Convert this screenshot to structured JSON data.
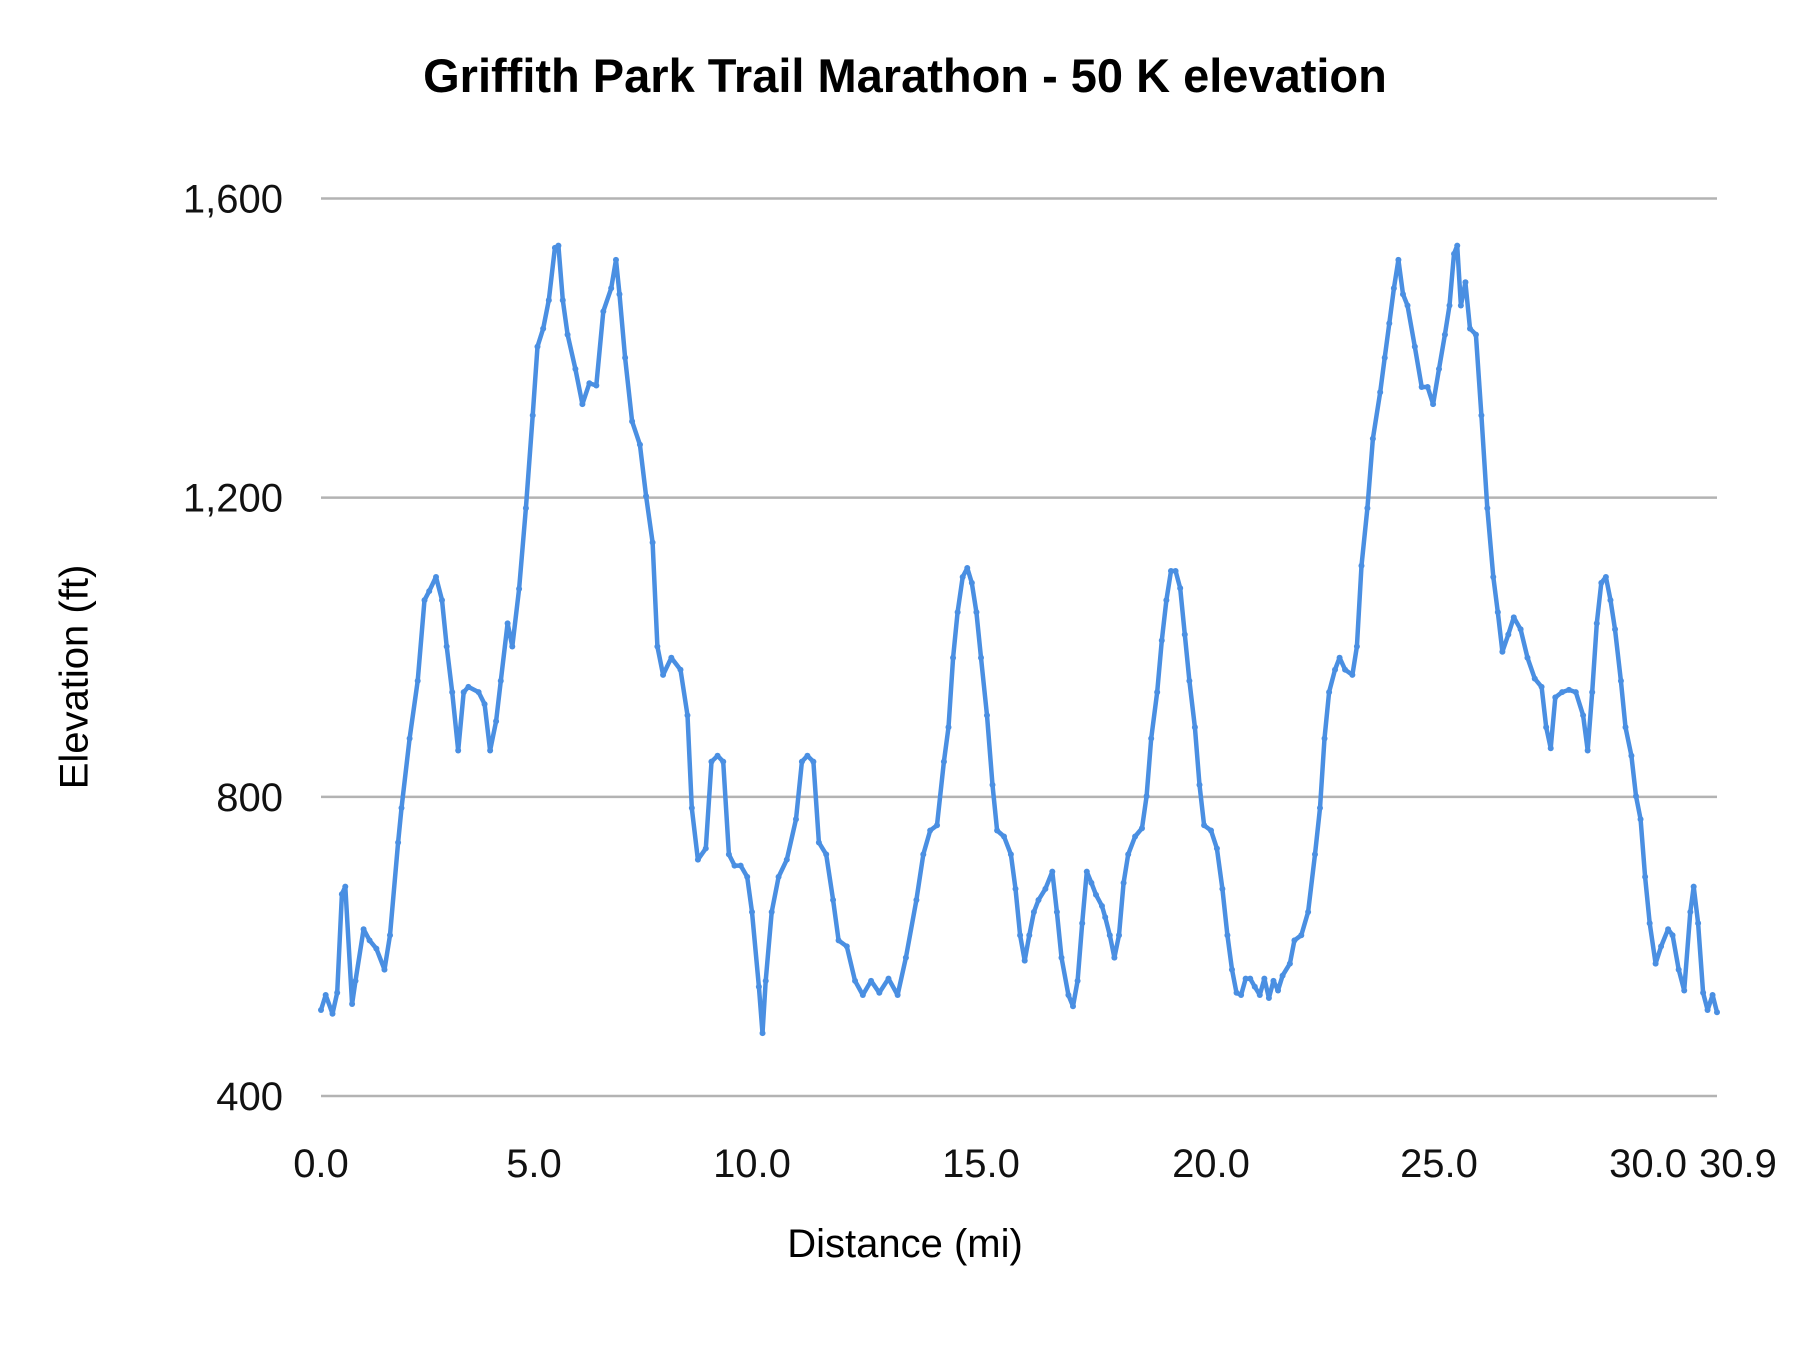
{
  "chart_data": {
    "type": "line",
    "title": "Griffith Park Trail Marathon - 50 K elevation",
    "xlabel": "Distance (mi)",
    "ylabel": "Elevation (ft)",
    "xlim": [
      0,
      30.9
    ],
    "ylim": [
      400,
      1600
    ],
    "x_ticks": [
      0,
      5,
      10,
      15,
      20,
      25,
      30,
      30.9
    ],
    "x_tick_labels": [
      "0.0",
      "5.0",
      "10.0",
      "15.0",
      "20.0",
      "25.0",
      "30.0",
      "30.9"
    ],
    "y_ticks": [
      400,
      800,
      1200,
      1600
    ],
    "y_tick_labels": [
      "400",
      "800",
      "1,200",
      "1,600"
    ],
    "grid": "horizontal",
    "legend": "none",
    "line_color": "#4a8fe2",
    "grid_color": "#b3b3b3",
    "markers": true,
    "x": [
      0,
      0.11,
      0.27,
      0.38,
      0.49,
      0.57,
      0.73,
      0.81,
      1.0,
      1.14,
      1.3,
      1.49,
      1.62,
      1.81,
      1.89,
      2.08,
      2.27,
      2.43,
      2.54,
      2.7,
      2.84,
      2.95,
      3.08,
      3.22,
      3.35,
      3.46,
      3.7,
      3.84,
      3.97,
      4.11,
      4.22,
      4.38,
      4.49,
      4.65,
      4.81,
      4.97,
      5.08,
      5.21,
      5.34,
      5.48,
      5.56,
      5.66,
      5.77,
      5.95,
      6.11,
      6.27,
      6.43,
      6.59,
      6.77,
      6.88,
      6.96,
      7.09,
      7.25,
      7.43,
      7.57,
      7.72,
      7.83,
      7.96,
      8.15,
      8.36,
      8.52,
      8.62,
      8.76,
      8.94,
      9.07,
      9.21,
      9.34,
      9.47,
      9.6,
      9.74,
      9.89,
      10.0,
      10.15,
      10.23,
      10.3,
      10.43,
      10.58,
      10.76,
      10.96,
      11.09,
      11.21,
      11.34,
      11.46,
      11.62,
      11.77,
      11.89,
      12.07,
      12.25,
      12.42,
      12.6,
      12.78,
      12.98,
      13.18,
      13.36,
      13.59,
      13.74,
      13.89,
      14.04,
      14.19,
      14.29,
      14.39,
      14.49,
      14.6,
      14.7,
      14.8,
      14.9,
      15.0,
      15.13,
      15.25,
      15.35,
      15.5,
      15.65,
      15.75,
      15.85,
      15.95,
      16.05,
      16.15,
      16.25,
      16.4,
      16.55,
      16.65,
      16.75,
      16.9,
      17.0,
      17.1,
      17.2,
      17.3,
      17.4,
      17.5,
      17.63,
      17.7,
      17.8,
      17.9,
      18.0,
      18.1,
      18.2,
      18.35,
      18.5,
      18.6,
      18.7,
      18.83,
      18.93,
      19.03,
      19.13,
      19.23,
      19.33,
      19.43,
      19.53,
      19.65,
      19.75,
      19.85,
      20.0,
      20.13,
      20.25,
      20.36,
      20.46,
      20.56,
      20.66,
      20.76,
      20.86,
      20.96,
      21.07,
      21.17,
      21.27,
      21.37,
      21.47,
      21.57,
      21.73,
      21.83,
      21.98,
      22.13,
      22.28,
      22.39,
      22.49,
      22.59,
      22.72,
      22.82,
      22.94,
      23.1,
      23.2,
      23.3,
      23.43,
      23.55,
      23.71,
      23.81,
      23.91,
      24.01,
      24.11,
      24.21,
      24.31,
      24.47,
      24.62,
      24.75,
      24.87,
      25.0,
      25.13,
      25.23,
      25.33,
      25.4,
      25.48,
      25.58,
      25.68,
      25.81,
      25.93,
      26.06,
      26.19,
      26.29,
      26.39,
      26.52,
      26.64,
      26.79,
      26.94,
      27.1,
      27.25,
      27.35,
      27.45,
      27.55,
      27.7,
      27.85,
      28.0,
      28.16,
      28.26,
      28.36,
      28.46,
      28.56,
      28.66,
      28.76,
      28.86,
      28.99,
      29.09,
      29.22,
      29.32,
      29.42,
      29.52,
      29.62,
      29.75,
      29.87,
      30.02,
      30.1,
      30.21,
      30.31,
      30.42,
      30.48,
      30.56,
      30.65,
      30.73,
      30.82,
      30.9
    ],
    "y": [
      515,
      535,
      510,
      538,
      670,
      680,
      523,
      554,
      623,
      608,
      597,
      569,
      615,
      739,
      785,
      878,
      955,
      1063,
      1075,
      1094,
      1063,
      1001,
      940,
      862,
      940,
      947,
      940,
      924,
      862,
      901,
      955,
      1032,
      1001,
      1078,
      1186,
      1310,
      1402,
      1426,
      1464,
      1534,
      1537,
      1464,
      1418,
      1372,
      1325,
      1353,
      1350,
      1449,
      1480,
      1518,
      1472,
      1387,
      1302,
      1271,
      1202,
      1140,
      1001,
      963,
      986,
      970,
      909,
      785,
      716,
      731,
      847,
      855,
      847,
      723,
      708,
      708,
      693,
      646,
      546,
      484,
      554,
      646,
      693,
      716,
      770,
      847,
      855,
      847,
      739,
      723,
      662,
      608,
      600,
      554,
      535,
      554,
      538,
      557,
      535,
      585,
      662,
      723,
      755,
      762,
      847,
      893,
      986,
      1047,
      1094,
      1106,
      1086,
      1047,
      986,
      909,
      816,
      755,
      747,
      723,
      677,
      615,
      581,
      615,
      646,
      662,
      677,
      700,
      646,
      585,
      535,
      520,
      554,
      631,
      700,
      685,
      669,
      654,
      639,
      615,
      585,
      615,
      685,
      723,
      747,
      758,
      801,
      878,
      940,
      1009,
      1063,
      1102,
      1102,
      1079,
      1017,
      955,
      893,
      816,
      762,
      755,
      731,
      677,
      615,
      569,
      538,
      535,
      557,
      557,
      546,
      535,
      557,
      531,
      554,
      541,
      561,
      577,
      608,
      615,
      646,
      723,
      785,
      878,
      940,
      970,
      986,
      970,
      963,
      1001,
      1109,
      1186,
      1279,
      1341,
      1387,
      1433,
      1480,
      1518,
      1472,
      1457,
      1402,
      1348,
      1348,
      1325,
      1372,
      1418,
      1457,
      1526,
      1537,
      1457,
      1488,
      1426,
      1418,
      1310,
      1186,
      1094,
      1047,
      994,
      1017,
      1040,
      1024,
      986,
      958,
      947,
      893,
      865,
      933,
      940,
      943,
      940,
      909,
      862,
      940,
      1032,
      1086,
      1094,
      1063,
      1024,
      955,
      893,
      855,
      801,
      770,
      693,
      631,
      577,
      600,
      623,
      615,
      569,
      541,
      646,
      680,
      631,
      538,
      515,
      535,
      512
    ]
  }
}
